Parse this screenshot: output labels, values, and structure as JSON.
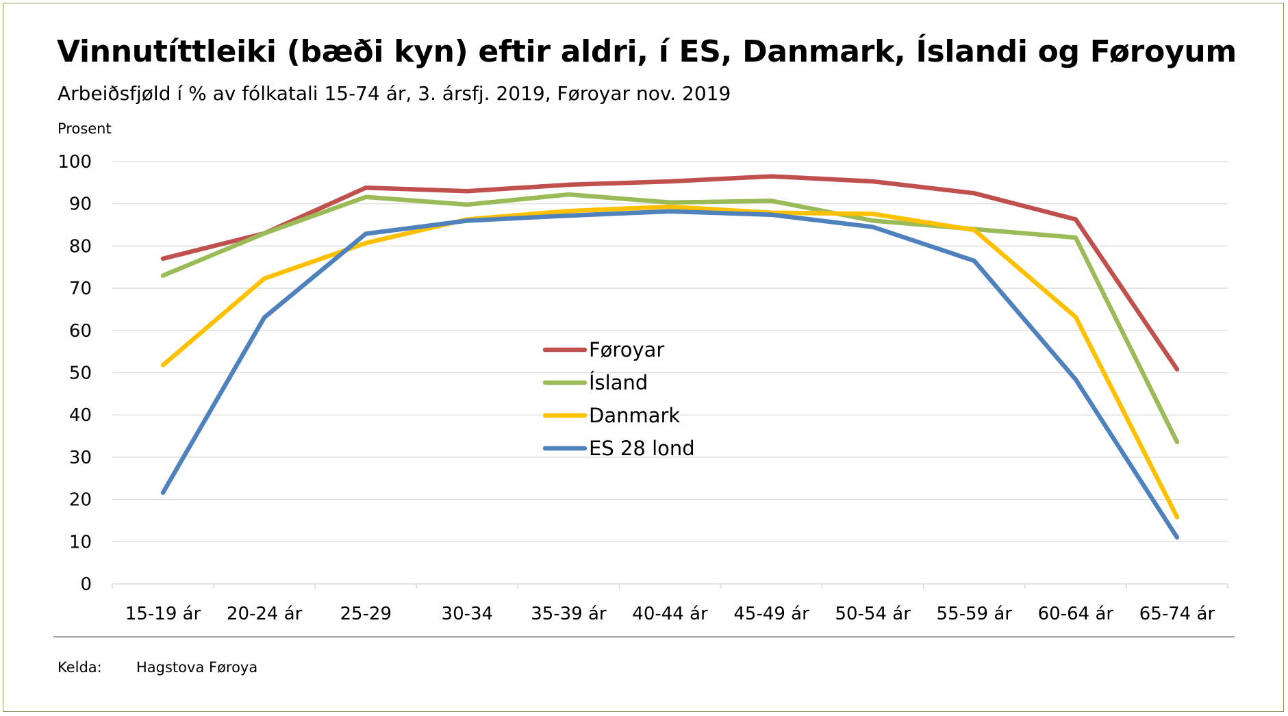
{
  "title": "Vinnutíttleiki (bæði kyn) eftir aldri, í ES, Danmark, Íslandi og Føroyum",
  "subtitle": "Arbeiðsfjøld í % av fólkatali 15-74 ár, 3. ársfj. 2019, Føroyar nov. 2019",
  "source": {
    "label": "Kelda:",
    "value": "Hagstova Føroya"
  },
  "chart_data": {
    "type": "line",
    "ylabel": "Prosent",
    "xlabel": "",
    "ylim": [
      0,
      100
    ],
    "yticks": [
      0,
      10,
      20,
      30,
      40,
      50,
      60,
      70,
      80,
      90,
      100
    ],
    "grid": true,
    "legend_position": "center",
    "categories": [
      "15-19 ár",
      "20-24 ár",
      "25-29",
      "30-34",
      "35-39 ár",
      "40-44 ár",
      "45-49 ár",
      "50-54 ár",
      "55-59 ár",
      "60-64 ár",
      "65-74 ár"
    ],
    "series": [
      {
        "name": "Føroyar",
        "color": "#c0504d",
        "values": [
          77,
          83,
          93.8,
          93,
          94.5,
          95.3,
          96.5,
          95.3,
          92.5,
          86.3,
          50.8
        ]
      },
      {
        "name": "Ísland",
        "color": "#9bbb59",
        "values": [
          73,
          83,
          91.6,
          89.8,
          92.2,
          90.3,
          90.7,
          86,
          84,
          82,
          33.6
        ]
      },
      {
        "name": "Danmark",
        "color": "#ffc000",
        "values": [
          51.8,
          72.3,
          80.7,
          86.3,
          88.3,
          89.3,
          87.9,
          87.6,
          83.8,
          63.2,
          15.8
        ]
      },
      {
        "name": "ES 28 lond",
        "color": "#4f81bd",
        "values": [
          21.6,
          63.1,
          82.9,
          86,
          87.2,
          88.2,
          87.4,
          84.5,
          76.5,
          48.4,
          11
        ]
      }
    ]
  }
}
